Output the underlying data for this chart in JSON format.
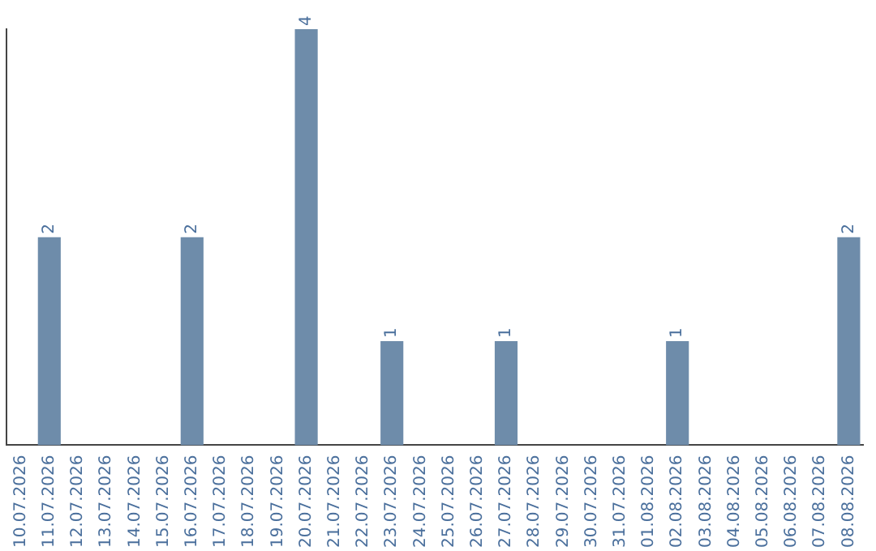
{
  "chart_data": {
    "type": "bar",
    "categories": [
      "10.07.2026",
      "11.07.2026",
      "12.07.2026",
      "13.07.2026",
      "14.07.2026",
      "15.07.2026",
      "16.07.2026",
      "17.07.2026",
      "18.07.2026",
      "19.07.2026",
      "20.07.2026",
      "21.07.2026",
      "22.07.2026",
      "23.07.2026",
      "24.07.2026",
      "25.07.2026",
      "26.07.2026",
      "27.07.2026",
      "28.07.2026",
      "29.07.2026",
      "30.07.2026",
      "31.07.2026",
      "01.08.2026",
      "02.08.2026",
      "03.08.2026",
      "04.08.2026",
      "05.08.2026",
      "06.08.2026",
      "07.08.2026",
      "08.08.2026"
    ],
    "values": [
      null,
      2,
      null,
      null,
      null,
      null,
      2,
      null,
      null,
      null,
      4,
      null,
      null,
      1,
      null,
      null,
      null,
      1,
      null,
      null,
      null,
      null,
      null,
      1,
      null,
      null,
      null,
      null,
      null,
      2
    ],
    "color": "#6e8caa",
    "data_labels": true,
    "grid": false,
    "legend": false
  }
}
